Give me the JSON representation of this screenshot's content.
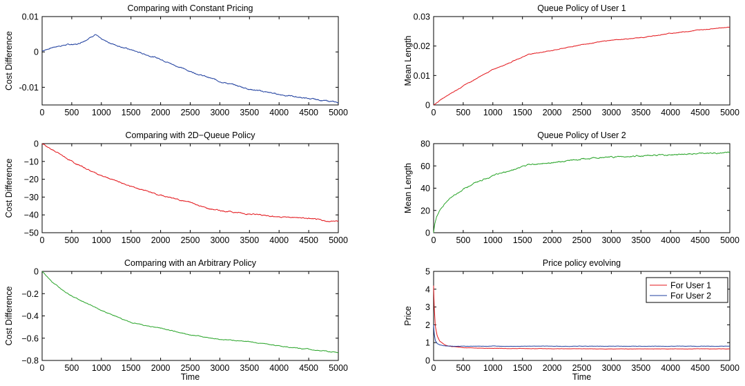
{
  "chart_data": [
    {
      "type": "line",
      "title": "Comparing with Constant Pricing",
      "xlabel": "",
      "ylabel": "Cost Difference",
      "xlim": [
        0,
        5000
      ],
      "ylim": [
        -0.015,
        0.01
      ],
      "xticks": [
        0,
        500,
        1000,
        1500,
        2000,
        2500,
        3000,
        3500,
        4000,
        4500,
        5000
      ],
      "xtick_labels": [
        "0",
        "500",
        "1000",
        "1500",
        "2000",
        "2500",
        "3000",
        "3500",
        "4000",
        "4500",
        "5000"
      ],
      "yticks": [
        -0.01,
        0,
        0.01
      ],
      "ytick_labels": [
        "-0.01",
        "0",
        "0.01"
      ],
      "grid": false,
      "series": [
        {
          "color": "#1f3f9f",
          "x": [
            0,
            200,
            400,
            600,
            800,
            900,
            1000,
            1200,
            1500,
            1800,
            2000,
            2200,
            2500,
            3000,
            3500,
            4000,
            4500,
            5000
          ],
          "y": [
            0.0003,
            0.0014,
            0.002,
            0.0022,
            0.004,
            0.005,
            0.0035,
            0.0022,
            0.0006,
            -0.001,
            -0.002,
            -0.0035,
            -0.0055,
            -0.0083,
            -0.0105,
            -0.012,
            -0.0132,
            -0.0143
          ]
        }
      ]
    },
    {
      "type": "line",
      "title": "Queue Policy of User 1",
      "xlabel": "",
      "ylabel": "Mean Length",
      "xlim": [
        0,
        5000
      ],
      "ylim": [
        0,
        0.03
      ],
      "xticks": [
        0,
        500,
        1000,
        1500,
        2000,
        2500,
        3000,
        3500,
        4000,
        4500,
        5000
      ],
      "xtick_labels": [
        "0",
        "500",
        "1000",
        "1500",
        "2000",
        "2500",
        "3000",
        "3500",
        "4000",
        "4500",
        "5000"
      ],
      "yticks": [
        0,
        0.01,
        0.02,
        0.03
      ],
      "ytick_labels": [
        "0",
        "0.01",
        "0.02",
        "0.03"
      ],
      "grid": false,
      "series": [
        {
          "color": "#e3161b",
          "x": [
            0,
            100,
            300,
            500,
            800,
            1000,
            1300,
            1600,
            2000,
            2500,
            3000,
            3500,
            4000,
            4500,
            5000
          ],
          "y": [
            0,
            0.0015,
            0.004,
            0.0065,
            0.0098,
            0.012,
            0.0145,
            0.0172,
            0.0185,
            0.0205,
            0.022,
            0.0228,
            0.0243,
            0.0255,
            0.0265
          ]
        }
      ]
    },
    {
      "type": "line",
      "title": "Comparing with 2D−Queue Policy",
      "xlabel": "",
      "ylabel": "Cost Difference",
      "xlim": [
        0,
        5000
      ],
      "ylim": [
        -50,
        0
      ],
      "xticks": [
        0,
        500,
        1000,
        1500,
        2000,
        2500,
        3000,
        3500,
        4000,
        4500,
        5000
      ],
      "xtick_labels": [
        "0",
        "500",
        "1000",
        "1500",
        "2000",
        "2500",
        "3000",
        "3500",
        "4000",
        "4500",
        "5000"
      ],
      "yticks": [
        -50,
        -40,
        -30,
        -20,
        -10,
        0
      ],
      "ytick_labels": [
        "−50",
        "−40",
        "−30",
        "−20",
        "−10",
        "0"
      ],
      "grid": false,
      "series": [
        {
          "color": "#e3161b",
          "x": [
            0,
            200,
            500,
            800,
            1000,
            1500,
            2000,
            2500,
            2800,
            3000,
            3500,
            4000,
            4500,
            4800,
            5000
          ],
          "y": [
            0,
            -4,
            -10,
            -15,
            -18,
            -24,
            -29,
            -33,
            -36.5,
            -37.5,
            -39.5,
            -41,
            -42,
            -43.5,
            -43.5
          ]
        }
      ]
    },
    {
      "type": "line",
      "title": "Queue Policy of User 2",
      "xlabel": "",
      "ylabel": "Mean Length",
      "xlim": [
        0,
        5000
      ],
      "ylim": [
        0,
        80
      ],
      "xticks": [
        0,
        500,
        1000,
        1500,
        2000,
        2500,
        3000,
        3500,
        4000,
        4500,
        5000
      ],
      "xtick_labels": [
        "0",
        "500",
        "1000",
        "1500",
        "2000",
        "2500",
        "3000",
        "3500",
        "4000",
        "4500",
        "5000"
      ],
      "yticks": [
        0,
        20,
        40,
        60,
        80
      ],
      "ytick_labels": [
        "0",
        "20",
        "40",
        "60",
        "80"
      ],
      "grid": false,
      "series": [
        {
          "color": "#2aa52a",
          "x": [
            0,
            20,
            50,
            100,
            200,
            300,
            500,
            700,
            1000,
            1300,
            1600,
            2000,
            2500,
            3000,
            3500,
            4000,
            4500,
            5000
          ],
          "y": [
            0,
            8,
            14,
            20,
            27,
            32,
            39,
            45,
            51,
            56,
            61,
            63,
            66,
            68,
            69,
            70,
            71,
            72
          ]
        }
      ]
    },
    {
      "type": "line",
      "title": "Comparing with an Arbitrary Policy",
      "xlabel": "Time",
      "ylabel": "Cost Difference",
      "xlim": [
        0,
        5000
      ],
      "ylim": [
        -0.8,
        0
      ],
      "xticks": [
        0,
        500,
        1000,
        1500,
        2000,
        2500,
        3000,
        3500,
        4000,
        4500,
        5000
      ],
      "xtick_labels": [
        "0",
        "500",
        "1000",
        "1500",
        "2000",
        "2500",
        "3000",
        "3500",
        "4000",
        "4500",
        "5000"
      ],
      "yticks": [
        -0.8,
        -0.6,
        -0.4,
        -0.2,
        0
      ],
      "ytick_labels": [
        "−0.8",
        "−0.6",
        "−0.4",
        "−0.2",
        "0"
      ],
      "grid": false,
      "series": [
        {
          "color": "#2aa52a",
          "x": [
            0,
            200,
            500,
            800,
            1000,
            1500,
            2000,
            2500,
            3000,
            3500,
            4000,
            4500,
            5000
          ],
          "y": [
            0,
            -0.11,
            -0.22,
            -0.3,
            -0.35,
            -0.46,
            -0.51,
            -0.57,
            -0.61,
            -0.63,
            -0.67,
            -0.7,
            -0.73
          ]
        }
      ]
    },
    {
      "type": "line",
      "title": "Price policy evolving",
      "xlabel": "Time",
      "ylabel": "Price",
      "xlim": [
        0,
        5000
      ],
      "ylim": [
        0,
        5
      ],
      "xticks": [
        0,
        500,
        1000,
        1500,
        2000,
        2500,
        3000,
        3500,
        4000,
        4500,
        5000
      ],
      "xtick_labels": [
        "0",
        "500",
        "1000",
        "1500",
        "2000",
        "2500",
        "3000",
        "3500",
        "4000",
        "4500",
        "5000"
      ],
      "yticks": [
        0,
        1,
        2,
        3,
        4,
        5
      ],
      "ytick_labels": [
        "0",
        "1",
        "2",
        "3",
        "4",
        "5"
      ],
      "grid": false,
      "legend": "top-right",
      "series": [
        {
          "name": "For User 1",
          "color": "#e3161b",
          "x": [
            0,
            10,
            30,
            60,
            100,
            200,
            300,
            500,
            1000,
            2000,
            3000,
            4000,
            5000
          ],
          "y": [
            4.2,
            3.0,
            1.9,
            1.4,
            1.1,
            0.85,
            0.78,
            0.72,
            0.68,
            0.66,
            0.65,
            0.65,
            0.65
          ]
        },
        {
          "name": "For User 2",
          "color": "#1f3f9f",
          "x": [
            0,
            10,
            30,
            60,
            100,
            200,
            300,
            500,
            1000,
            2000,
            3000,
            4000,
            5000
          ],
          "y": [
            2.0,
            1.5,
            1.1,
            0.95,
            0.88,
            0.82,
            0.8,
            0.8,
            0.8,
            0.8,
            0.8,
            0.8,
            0.8
          ]
        }
      ]
    }
  ]
}
